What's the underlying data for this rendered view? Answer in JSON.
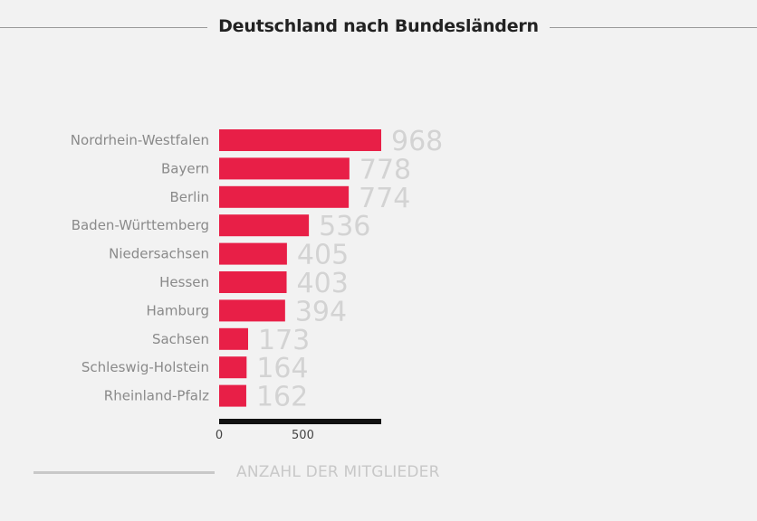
{
  "chart_data": {
    "type": "bar",
    "orientation": "horizontal",
    "title": "Deutschland nach Bundesländern",
    "categories": [
      "Nordrhein-Westfalen",
      "Bayern",
      "Berlin",
      "Baden-Württemberg",
      "Niedersachsen",
      "Hessen",
      "Hamburg",
      "Sachsen",
      "Schleswig-Holstein",
      "Rheinland-Pfalz"
    ],
    "values": [
      968,
      778,
      774,
      536,
      405,
      403,
      394,
      173,
      164,
      162
    ],
    "xlim": [
      0,
      968
    ],
    "x_ticks": [
      "0",
      "500"
    ],
    "xlabel": "",
    "ylabel": "",
    "legend": "ANZAHL DER MITGLIEDER",
    "colors": {
      "bar": "#e81f47",
      "axis": "#111111",
      "value_label": "#d3d3d3",
      "category_label": "#8a8a8a",
      "legend": "#c8c8c8"
    }
  }
}
